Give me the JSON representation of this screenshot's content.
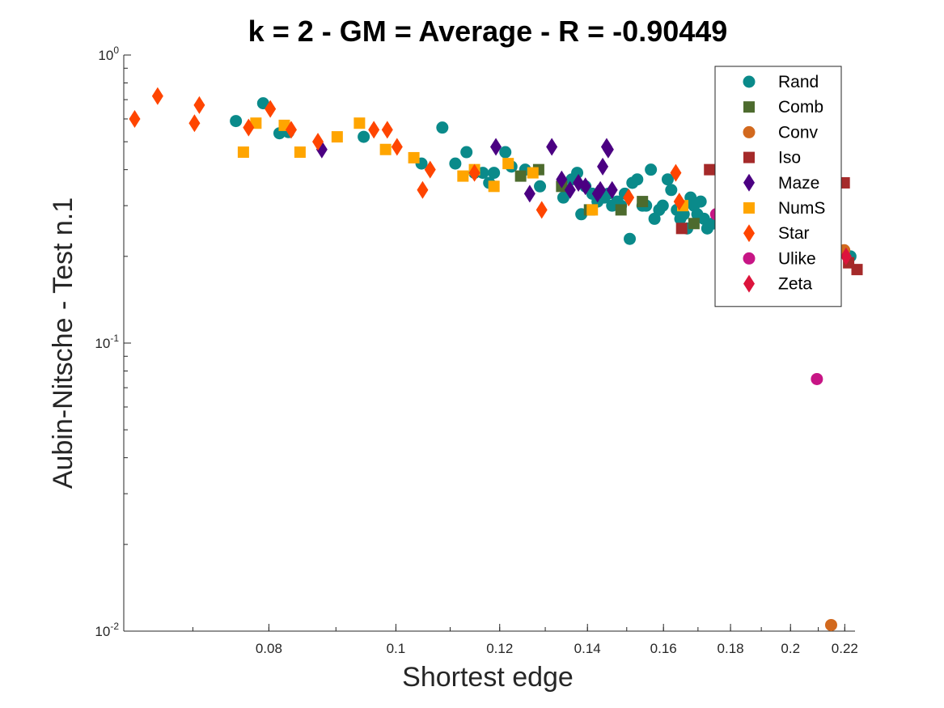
{
  "chart_data": {
    "type": "scatter",
    "title": "k = 2 - GM = Average - R = -0.90449",
    "xlabel": "Shortest edge",
    "ylabel": "Aubin-Nitsche - Test n.1",
    "xscale": "log",
    "yscale": "log",
    "xlim": [
      0.062,
      0.224
    ],
    "ylim": [
      0.01,
      1.0
    ],
    "x_ticks": [
      {
        "value": 0.08,
        "label": "0.08"
      },
      {
        "value": 0.1,
        "label": "0.1"
      },
      {
        "value": 0.12,
        "label": "0.12"
      },
      {
        "value": 0.14,
        "label": "0.14"
      },
      {
        "value": 0.16,
        "label": "0.16"
      },
      {
        "value": 0.18,
        "label": "0.18"
      },
      {
        "value": 0.2,
        "label": "0.2"
      },
      {
        "value": 0.22,
        "label": "0.22"
      }
    ],
    "y_ticks": [
      {
        "value": 1.0,
        "base": "10",
        "exp": "0"
      },
      {
        "value": 0.1,
        "base": "10",
        "exp": "-1"
      },
      {
        "value": 0.01,
        "base": "10",
        "exp": "-2"
      }
    ],
    "legend_position": "top-right",
    "series": [
      {
        "name": "Rand",
        "marker": "circle",
        "color": "#0a8a8a",
        "points": [
          [
            0.0755,
            0.59
          ],
          [
            0.0792,
            0.68
          ],
          [
            0.0815,
            0.535
          ],
          [
            0.0828,
            0.54
          ],
          [
            0.0945,
            0.52
          ],
          [
            0.1046,
            0.42
          ],
          [
            0.1085,
            0.56
          ],
          [
            0.111,
            0.42
          ],
          [
            0.1132,
            0.46
          ],
          [
            0.1148,
            0.39
          ],
          [
            0.1165,
            0.39
          ],
          [
            0.1178,
            0.36
          ],
          [
            0.1188,
            0.39
          ],
          [
            0.1212,
            0.46
          ],
          [
            0.1225,
            0.41
          ],
          [
            0.1255,
            0.4
          ],
          [
            0.1288,
            0.35
          ],
          [
            0.1342,
            0.32
          ],
          [
            0.1352,
            0.34
          ],
          [
            0.1362,
            0.37
          ],
          [
            0.1375,
            0.39
          ],
          [
            0.1385,
            0.28
          ],
          [
            0.1395,
            0.35
          ],
          [
            0.1412,
            0.33
          ],
          [
            0.1425,
            0.31
          ],
          [
            0.1442,
            0.32
          ],
          [
            0.1452,
            0.33
          ],
          [
            0.1462,
            0.3
          ],
          [
            0.1475,
            0.31
          ],
          [
            0.1485,
            0.3
          ],
          [
            0.1495,
            0.33
          ],
          [
            0.1508,
            0.23
          ],
          [
            0.1515,
            0.36
          ],
          [
            0.1528,
            0.37
          ],
          [
            0.1542,
            0.3
          ],
          [
            0.1552,
            0.3
          ],
          [
            0.1565,
            0.4
          ],
          [
            0.1575,
            0.27
          ],
          [
            0.1588,
            0.29
          ],
          [
            0.1598,
            0.3
          ],
          [
            0.1612,
            0.37
          ],
          [
            0.1622,
            0.34
          ],
          [
            0.1638,
            0.29
          ],
          [
            0.1648,
            0.27
          ],
          [
            0.1658,
            0.28
          ],
          [
            0.1668,
            0.25
          ],
          [
            0.1678,
            0.32
          ],
          [
            0.1688,
            0.3
          ],
          [
            0.1698,
            0.28
          ],
          [
            0.1708,
            0.31
          ],
          [
            0.1718,
            0.27
          ],
          [
            0.1728,
            0.25
          ],
          [
            0.1745,
            0.26
          ],
          [
            0.2222,
            0.2
          ]
        ]
      },
      {
        "name": "Comb",
        "marker": "square",
        "color": "#4d6b2e",
        "points": [
          [
            0.1245,
            0.38
          ],
          [
            0.1285,
            0.4
          ],
          [
            0.1338,
            0.35
          ],
          [
            0.1405,
            0.29
          ],
          [
            0.1485,
            0.29
          ],
          [
            0.1542,
            0.31
          ],
          [
            0.1688,
            0.26
          ]
        ]
      },
      {
        "name": "Conv",
        "marker": "circle",
        "color": "#d2691e",
        "points": [
          [
            0.2198,
            0.21
          ],
          [
            0.2148,
            0.0105
          ]
        ]
      },
      {
        "name": "Iso",
        "marker": "square",
        "color": "#a52a2a",
        "points": [
          [
            0.1652,
            0.25
          ],
          [
            0.1735,
            0.4
          ],
          [
            0.2198,
            0.36
          ],
          [
            0.2215,
            0.19
          ],
          [
            0.2248,
            0.18
          ]
        ]
      },
      {
        "name": "Maze",
        "marker": "diamond",
        "color": "#4b0082",
        "points": [
          [
            0.0878,
            0.47
          ],
          [
            0.1192,
            0.48
          ],
          [
            0.1265,
            0.33
          ],
          [
            0.1315,
            0.48
          ],
          [
            0.1338,
            0.37
          ],
          [
            0.1358,
            0.34
          ],
          [
            0.1378,
            0.36
          ],
          [
            0.1395,
            0.35
          ],
          [
            0.1425,
            0.33
          ],
          [
            0.1432,
            0.34
          ],
          [
            0.1438,
            0.41
          ],
          [
            0.1448,
            0.48
          ],
          [
            0.1452,
            0.47
          ],
          [
            0.1462,
            0.34
          ]
        ]
      },
      {
        "name": "NumS",
        "marker": "square",
        "color": "#ffa500",
        "points": [
          [
            0.0765,
            0.46
          ],
          [
            0.0782,
            0.58
          ],
          [
            0.0822,
            0.57
          ],
          [
            0.0845,
            0.46
          ],
          [
            0.0902,
            0.52
          ],
          [
            0.0938,
            0.58
          ],
          [
            0.0982,
            0.47
          ],
          [
            0.1032,
            0.44
          ],
          [
            0.1125,
            0.38
          ],
          [
            0.1148,
            0.4
          ],
          [
            0.1188,
            0.35
          ],
          [
            0.1218,
            0.42
          ],
          [
            0.1272,
            0.39
          ],
          [
            0.1412,
            0.29
          ],
          [
            0.1655,
            0.3
          ],
          [
            0.1768,
            0.29
          ]
        ]
      },
      {
        "name": "Star",
        "marker": "diamond",
        "color": "#ff4500",
        "points": [
          [
            0.0632,
            0.6
          ],
          [
            0.0658,
            0.72
          ],
          [
            0.0702,
            0.58
          ],
          [
            0.0708,
            0.67
          ],
          [
            0.0772,
            0.56
          ],
          [
            0.0802,
            0.65
          ],
          [
            0.0832,
            0.55
          ],
          [
            0.0872,
            0.5
          ],
          [
            0.0962,
            0.55
          ],
          [
            0.0985,
            0.55
          ],
          [
            0.1002,
            0.48
          ],
          [
            0.1048,
            0.34
          ],
          [
            0.1062,
            0.4
          ],
          [
            0.1148,
            0.39
          ],
          [
            0.1292,
            0.29
          ],
          [
            0.1505,
            0.32
          ],
          [
            0.1635,
            0.39
          ],
          [
            0.1645,
            0.31
          ]
        ]
      },
      {
        "name": "Ulike",
        "marker": "circle",
        "color": "#c71585",
        "points": [
          [
            0.1755,
            0.28
          ],
          [
            0.2095,
            0.075
          ]
        ]
      },
      {
        "name": "Zeta",
        "marker": "diamond",
        "color": "#dc143c",
        "points": [
          [
            0.2205,
            0.2
          ]
        ]
      }
    ]
  }
}
